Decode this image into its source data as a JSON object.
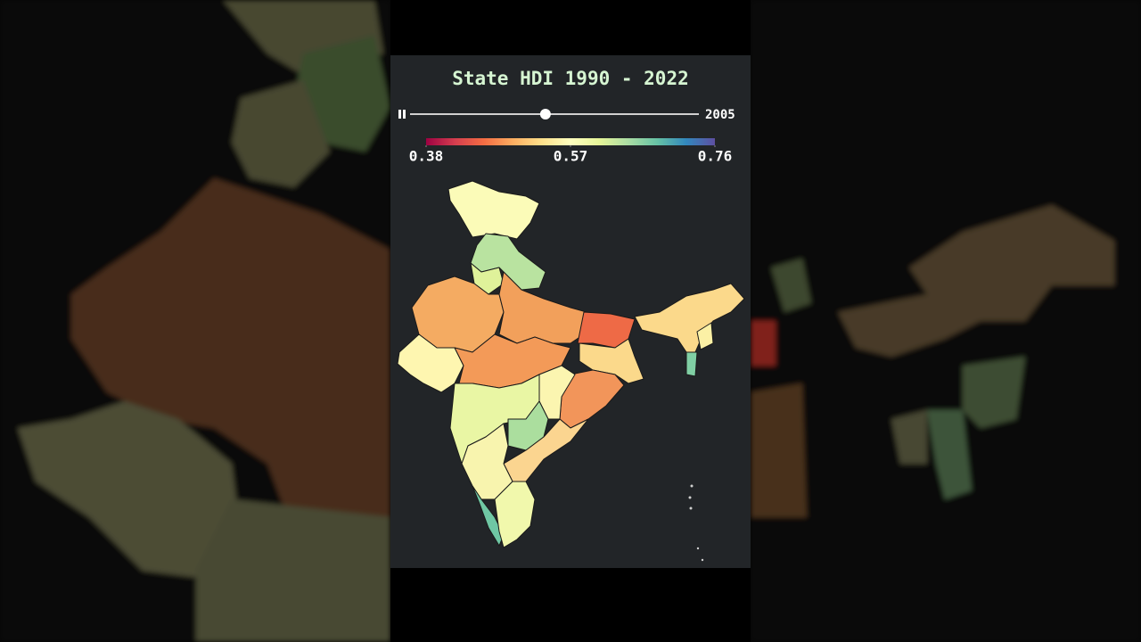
{
  "title": "State HDI 1990 - 2022",
  "slider": {
    "range": [
      1990,
      2022
    ],
    "value": 2005
  },
  "colorbar": {
    "range": [
      0.38,
      0.76
    ],
    "ticks": [
      0.38,
      0.57,
      0.76
    ],
    "colors": [
      "#9e0142",
      "#d53e4f",
      "#f46d43",
      "#fdae61",
      "#fee08b",
      "#ffffbf",
      "#e6f598",
      "#abdda4",
      "#66c2a5",
      "#3288bd",
      "#5e4fa2"
    ]
  }
}
